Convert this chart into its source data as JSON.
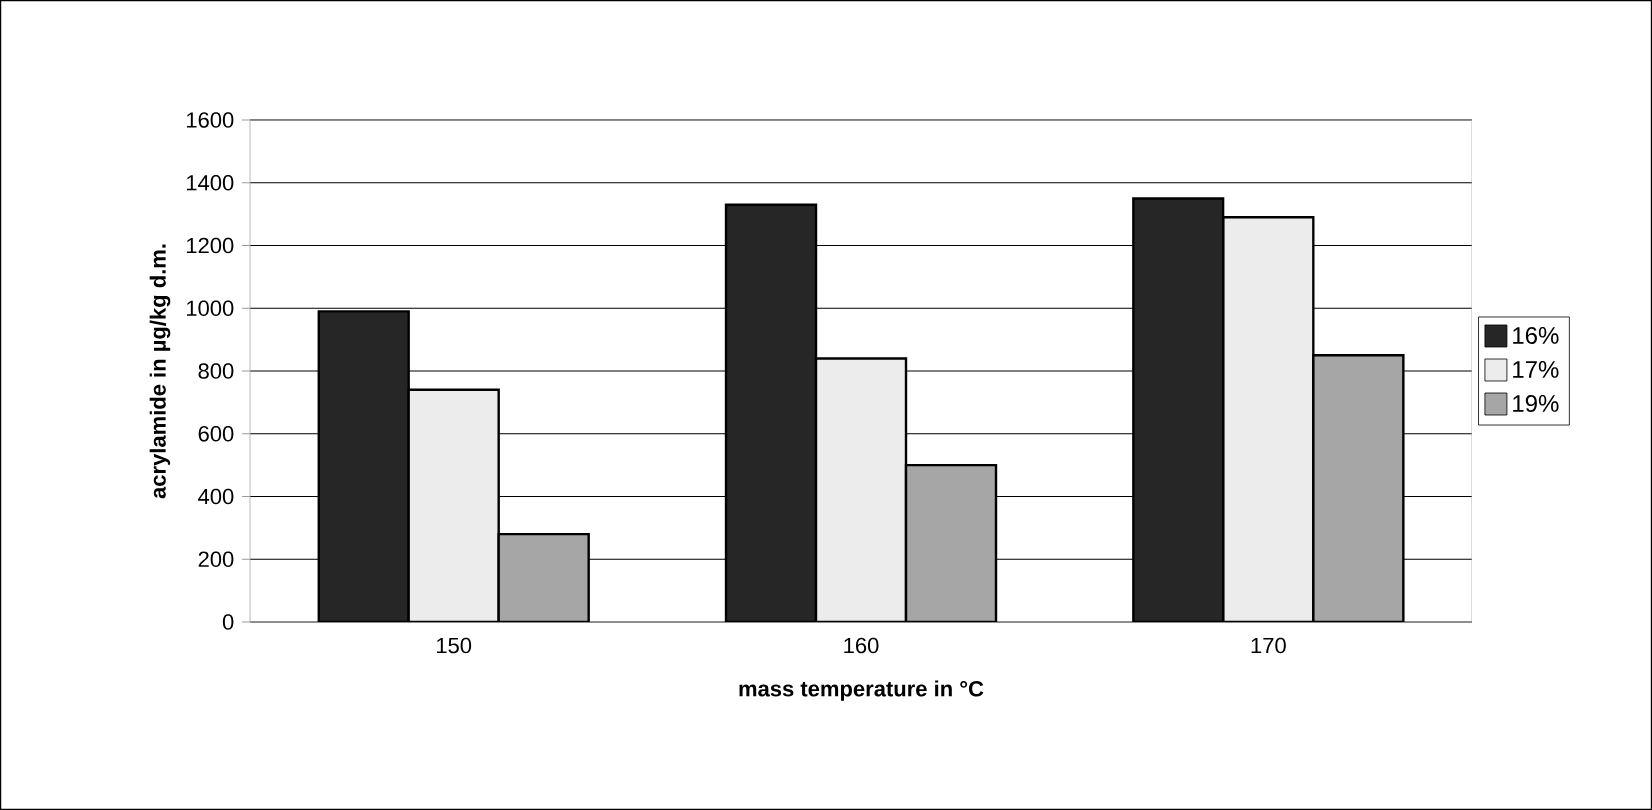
{
  "chart_data": {
    "type": "bar",
    "xlabel": "mass temperature in °C",
    "ylabel": "acrylamide in µg/kg d.m.",
    "categories": [
      "150",
      "160",
      "170"
    ],
    "series": [
      {
        "name": "16%",
        "color": "#262626",
        "values": [
          990,
          1330,
          1350
        ]
      },
      {
        "name": "17%",
        "color": "#ececec",
        "values": [
          740,
          840,
          1290
        ]
      },
      {
        "name": "19%",
        "color": "#a6a6a6",
        "values": [
          280,
          500,
          850
        ]
      }
    ],
    "ylim": [
      0,
      1600
    ],
    "yticks": [
      0,
      200,
      400,
      600,
      800,
      1000,
      1200,
      1400,
      1600
    ],
    "grid": "y",
    "legend": "right"
  }
}
